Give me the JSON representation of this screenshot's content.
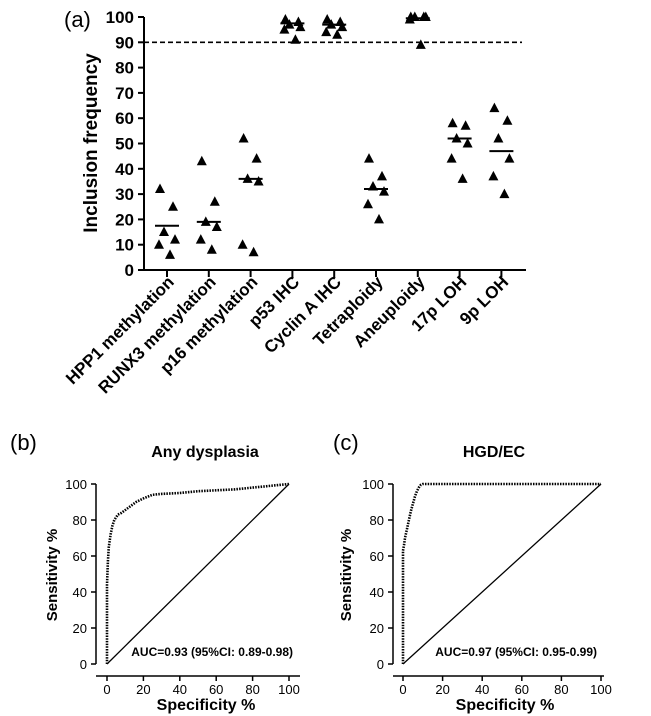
{
  "chart_data": [
    {
      "panel": "(a)",
      "type": "scatter",
      "title": "",
      "ylabel": "Inclusion frequency",
      "xlabel": "",
      "ylim": [
        0,
        100
      ],
      "yticks": [
        0,
        10,
        20,
        30,
        40,
        50,
        60,
        70,
        80,
        90,
        100
      ],
      "threshold": 90,
      "categories": [
        "HPP1 methylation",
        "RUNX3 methylation",
        "p16 methylation",
        "p53 IHC",
        "Cyclin A IHC",
        "Tetraploidy",
        "Aneuploidy",
        "17p LOH",
        "9p LOH"
      ],
      "points": [
        [
          32,
          25,
          15,
          12,
          10,
          6
        ],
        [
          43,
          27,
          19,
          17,
          12,
          8
        ],
        [
          52,
          44,
          36,
          35,
          10,
          7
        ],
        [
          99,
          98,
          97,
          96,
          95,
          91
        ],
        [
          99,
          98,
          97,
          96,
          94,
          93
        ],
        [
          44,
          37,
          33,
          31,
          26,
          20
        ],
        [
          100,
          100,
          100,
          100,
          99,
          89
        ],
        [
          58,
          57,
          52,
          50,
          44,
          36
        ],
        [
          64,
          59,
          52,
          44,
          37,
          30
        ]
      ],
      "means": [
        17.5,
        19,
        36,
        97.5,
        97,
        32,
        99.5,
        52,
        47
      ]
    },
    {
      "panel": "(b)",
      "type": "line",
      "title": "Any dysplasia",
      "xlabel": "Specificity %",
      "ylabel": "Sensitivity %",
      "xticks": [
        0,
        20,
        40,
        60,
        80,
        100
      ],
      "yticks": [
        0,
        20,
        40,
        60,
        80,
        100
      ],
      "xlim": [
        0,
        100
      ],
      "ylim": [
        0,
        100
      ],
      "annotation": "AUC=0.93 (95%CI: 0.89-0.98)",
      "roc_x": [
        0,
        0,
        0.5,
        1,
        2,
        3,
        4,
        6,
        8,
        12,
        16,
        20,
        25,
        30,
        40,
        50,
        60,
        70,
        80,
        90,
        100
      ],
      "roc_y": [
        0,
        44,
        57,
        65,
        72,
        77,
        80,
        83,
        84,
        87,
        90,
        92,
        94,
        94.5,
        95,
        96,
        96.5,
        97,
        98,
        99,
        100
      ],
      "diagonal": [
        [
          0,
          0
        ],
        [
          100,
          100
        ]
      ]
    },
    {
      "panel": "(c)",
      "type": "line",
      "title": "HGD/EC",
      "xlabel": "Specificity %",
      "ylabel": "Sensitivity %",
      "xticks": [
        0,
        20,
        40,
        60,
        80,
        100
      ],
      "yticks": [
        0,
        20,
        40,
        60,
        80,
        100
      ],
      "xlim": [
        0,
        100
      ],
      "ylim": [
        0,
        100
      ],
      "annotation": "AUC=0.97 (95%CI: 0.95-0.99)",
      "roc_x": [
        0,
        0,
        0.5,
        1,
        2,
        3,
        4,
        5,
        6,
        7,
        8,
        9,
        10,
        20,
        40,
        60,
        80,
        100
      ],
      "roc_y": [
        0,
        63,
        66,
        70,
        75,
        80,
        85,
        89,
        93,
        96,
        98,
        99.5,
        100,
        100,
        100,
        100,
        100,
        100
      ],
      "diagonal": [
        [
          0,
          0
        ],
        [
          100,
          100
        ]
      ]
    }
  ]
}
